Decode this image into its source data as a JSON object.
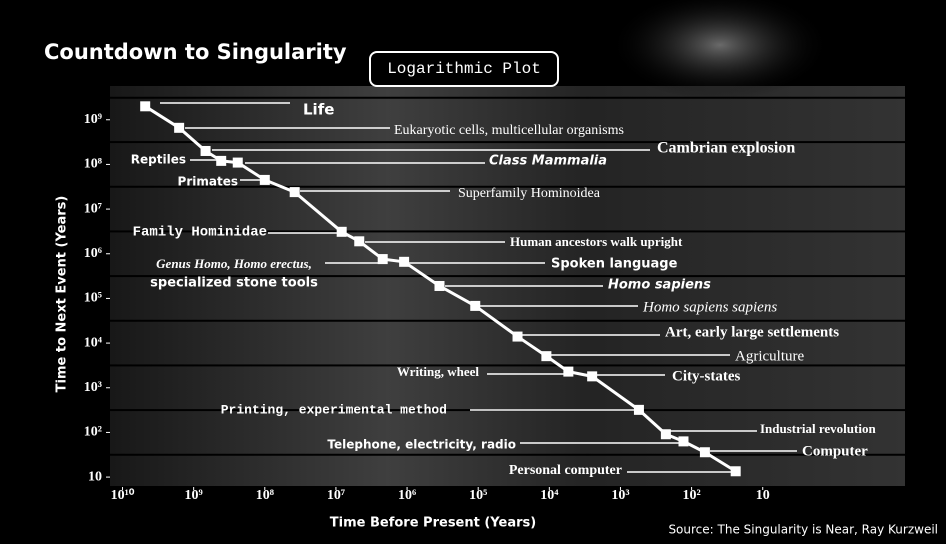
{
  "chart_data": {
    "type": "line",
    "title": "Countdown to Singularity",
    "subtitle": "Logarithmic Plot",
    "x_label": "Time Before Present (Years)",
    "y_label": "Time to Next Event (Years)",
    "source": "Source: The Singularity is Near, Ray Kurzweil",
    "log_x": true,
    "log_y": true,
    "color": "#ffffff",
    "xlim": [
      15000000000,
      0.1
    ],
    "ylim": [
      6,
      6000000000
    ],
    "xticks": [
      {
        "value": 10000000000,
        "label": "10¹⁰"
      },
      {
        "value": 1000000000,
        "label": "10⁹"
      },
      {
        "value": 100000000,
        "label": "10⁸"
      },
      {
        "value": 10000000,
        "label": "10⁷"
      },
      {
        "value": 1000000,
        "label": "10⁶"
      },
      {
        "value": 100000,
        "label": "10⁵"
      },
      {
        "value": 10000,
        "label": "10⁴"
      },
      {
        "value": 1000,
        "label": "10³"
      },
      {
        "value": 100,
        "label": "10²"
      },
      10
    ],
    "yticks": [
      10,
      {
        "value": 100,
        "label": "10²"
      },
      {
        "value": 1000,
        "label": "10³"
      },
      {
        "value": 10000,
        "label": "10⁴"
      },
      {
        "value": 100000,
        "label": "10⁵"
      },
      {
        "value": 1000000,
        "label": "10⁶"
      },
      {
        "value": 10000000,
        "label": "10⁷"
      },
      {
        "value": 100000000,
        "label": "10⁸"
      },
      {
        "value": 1000000000,
        "label": "10⁹"
      }
    ],
    "x": [
      4800000000,
      1600000000,
      680000000,
      410000000,
      240000000,
      100000000,
      38000000,
      8300000,
      4700000,
      2200000,
      1100000,
      350000,
      110000,
      28000,
      11000,
      5400,
      2500,
      550,
      230,
      130,
      65,
      24
    ],
    "values": [
      2000000000,
      660000000,
      200000000,
      120000000,
      110000000,
      45000000,
      24000000,
      3100000,
      1900000,
      760000,
      660000,
      190000,
      68000,
      14000,
      5100,
      2300,
      1800,
      320,
      91,
      63,
      36,
      13.5
    ],
    "labels": [
      "Life",
      "Eukaryotic cells, multicellular organisms",
      "Cambrian explosion",
      "Reptiles",
      "Class Mammalia",
      "Primates",
      "Superfamily Hominoidea",
      "Family Hominidae",
      "Human ancestors walk upright",
      [
        "Genus Homo, Homo erectus,",
        "specialized stone tools"
      ],
      "Spoken language",
      "Homo sapiens",
      "Homo sapiens sapiens",
      "Art, early large settlements",
      "Agriculture",
      "Writing, wheel",
      "City-states",
      "Printing, experimental method",
      "Industrial revolution",
      "Telephone, electricity, radio",
      "Computer",
      "Personal computer"
    ]
  }
}
